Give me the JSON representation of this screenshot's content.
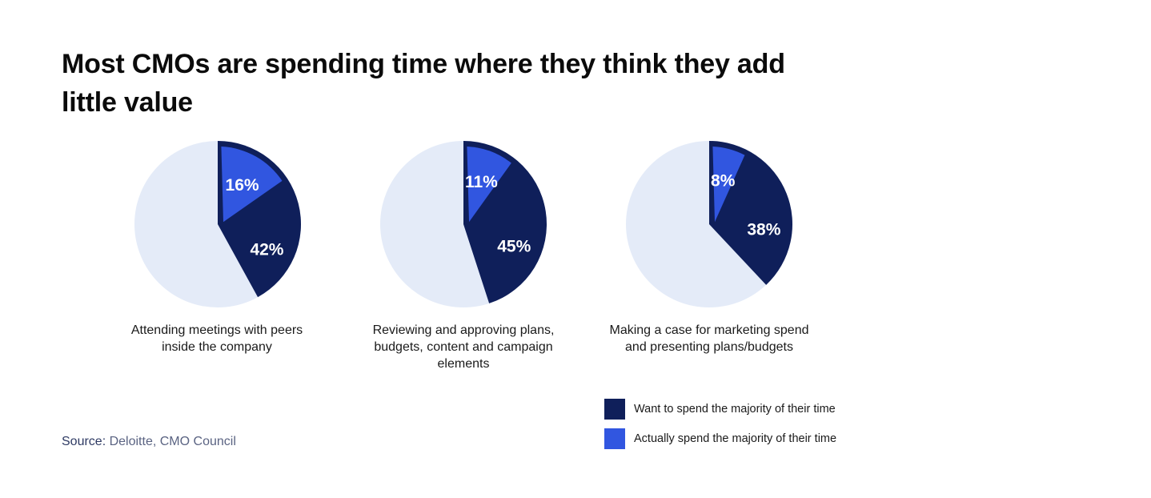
{
  "title": "Most CMOs are spending time where they think they add little value",
  "source": {
    "label": "Source:",
    "text": "Deloitte, CMO Council"
  },
  "colors": {
    "want": "#0f1f5a",
    "actual": "#3156e0",
    "rest": "#e4ebf8"
  },
  "legend": [
    {
      "label": "Want to spend the majority of their time",
      "color": "#0f1f5a"
    },
    {
      "label": "Actually spend the majority of their time",
      "color": "#3156e0"
    }
  ],
  "chart_data": [
    {
      "type": "pie",
      "caption": "Attending meetings with peers inside the company",
      "values": [
        {
          "series": "Want to spend the majority of their time",
          "value": 42,
          "label": "42%"
        },
        {
          "series": "Actually spend the majority of their time",
          "value": 16,
          "label": "16%"
        }
      ]
    },
    {
      "type": "pie",
      "caption": "Reviewing and approving plans, budgets, content and campaign elements",
      "values": [
        {
          "series": "Want to spend the majority of their time",
          "value": 45,
          "label": "45%"
        },
        {
          "series": "Actually spend the majority of their time",
          "value": 11,
          "label": "11%"
        }
      ]
    },
    {
      "type": "pie",
      "caption": "Making a case for marketing spend and presenting plans/budgets",
      "values": [
        {
          "series": "Want to spend the majority of their time",
          "value": 38,
          "label": "38%"
        },
        {
          "series": "Actually spend the majority of their time",
          "value": 8,
          "label": "8%"
        }
      ]
    }
  ]
}
